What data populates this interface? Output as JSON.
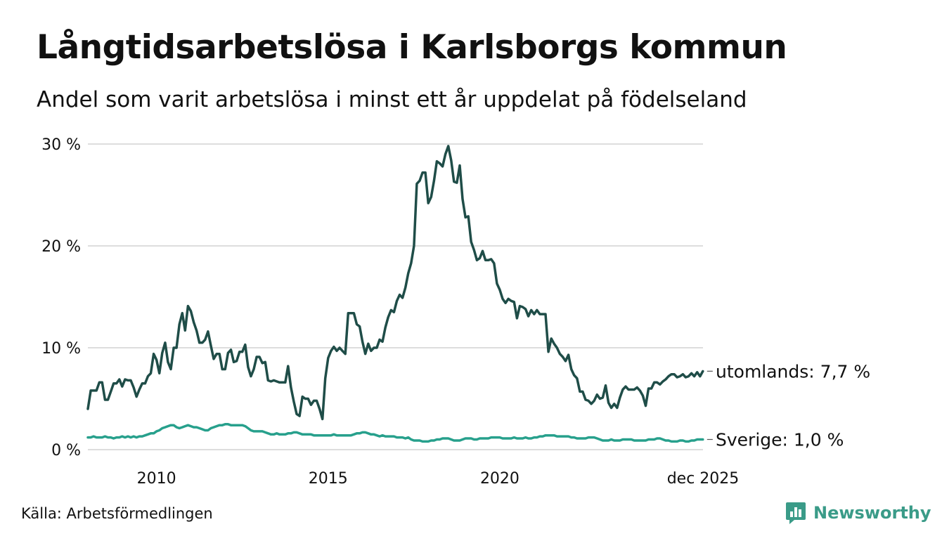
{
  "header": {
    "title": "Långtidsarbetslösa i Karlsborgs kommun",
    "subtitle": "Andel som varit arbetslösa i minst ett år uppdelat på födelseland"
  },
  "footer": {
    "source": "Källa: Arbetsförmedlingen",
    "brand": "Newsworthy",
    "brand_icon": "newsworthy-logo-icon"
  },
  "colors": {
    "utomlands": "#1f4d48",
    "sverige": "#27a08c",
    "grid": "#dddddd",
    "brand": "#3a9b88"
  },
  "chart_data": {
    "type": "line",
    "title": "Långtidsarbetslösa i Karlsborgs kommun",
    "subtitle": "Andel som varit arbetslösa i minst ett år uppdelat på födelseland",
    "xlabel": "",
    "ylabel": "",
    "x_start": 2008.0,
    "x_step_months": 1,
    "xlim": [
      2008.0,
      2025.92
    ],
    "ylim": [
      0,
      30
    ],
    "grid": true,
    "legend": "end-labels",
    "y_ticks": [
      {
        "value": 0,
        "label": "0 %"
      },
      {
        "value": 10,
        "label": "10 %"
      },
      {
        "value": 20,
        "label": "20 %"
      },
      {
        "value": 30,
        "label": "30 %"
      }
    ],
    "x_ticks": [
      {
        "value": 2010,
        "label": "2010"
      },
      {
        "value": 2015,
        "label": "2015"
      },
      {
        "value": 2020,
        "label": "2020"
      },
      {
        "value": 2025.92,
        "label": "dec 2025"
      }
    ],
    "series": [
      {
        "name": "utomlands",
        "end_label": "utomlands: 7,7 %",
        "color": "#1f4d48",
        "values": [
          4.0,
          5.8,
          5.8,
          5.8,
          6.6,
          6.6,
          4.9,
          4.9,
          5.7,
          6.5,
          6.5,
          6.9,
          6.2,
          6.9,
          6.8,
          6.8,
          6.1,
          5.2,
          5.9,
          6.5,
          6.5,
          7.2,
          7.5,
          9.4,
          8.8,
          7.5,
          9.5,
          10.5,
          8.6,
          7.9,
          10.0,
          10.0,
          12.3,
          13.4,
          11.7,
          14.1,
          13.6,
          12.5,
          11.7,
          10.5,
          10.5,
          10.8,
          11.6,
          10.2,
          8.9,
          9.4,
          9.4,
          7.9,
          7.9,
          9.5,
          9.8,
          8.6,
          8.7,
          9.6,
          9.6,
          10.3,
          8.1,
          7.2,
          7.9,
          9.1,
          9.1,
          8.5,
          8.6,
          6.8,
          6.7,
          6.8,
          6.7,
          6.6,
          6.6,
          6.6,
          8.2,
          6.1,
          4.7,
          3.5,
          3.3,
          5.2,
          5.0,
          5.0,
          4.4,
          4.8,
          4.8,
          4.0,
          3.0,
          7.0,
          9.0,
          9.7,
          10.1,
          9.7,
          10.0,
          9.7,
          9.4,
          13.4,
          13.4,
          13.4,
          12.3,
          12.1,
          10.6,
          9.4,
          10.4,
          9.7,
          10.0,
          10.0,
          10.8,
          10.6,
          12.0,
          13.0,
          13.7,
          13.5,
          14.6,
          15.2,
          14.9,
          15.9,
          17.3,
          18.3,
          20.0,
          26.1,
          26.4,
          27.2,
          27.2,
          24.2,
          24.8,
          26.4,
          28.3,
          28.1,
          27.8,
          29.0,
          29.8,
          28.4,
          26.3,
          26.2,
          27.9,
          24.6,
          22.8,
          22.9,
          20.4,
          19.6,
          18.6,
          18.8,
          19.5,
          18.6,
          18.6,
          18.7,
          18.3,
          16.3,
          15.7,
          14.8,
          14.4,
          14.8,
          14.6,
          14.5,
          12.9,
          14.1,
          14.0,
          13.8,
          13.1,
          13.7,
          13.3,
          13.7,
          13.3,
          13.3,
          13.3,
          9.6,
          10.9,
          10.4,
          10.0,
          9.4,
          9.1,
          8.7,
          9.3,
          7.9,
          7.3,
          7.0,
          5.7,
          5.7,
          4.9,
          4.8,
          4.5,
          4.8,
          5.4,
          5.0,
          5.1,
          6.3,
          4.6,
          4.1,
          4.5,
          4.1,
          5.1,
          5.9,
          6.2,
          5.9,
          5.9,
          5.9,
          6.1,
          5.8,
          5.3,
          4.3,
          6.0,
          6.0,
          6.6,
          6.6,
          6.4,
          6.7,
          6.9,
          7.2,
          7.4,
          7.4,
          7.1,
          7.2,
          7.4,
          7.1,
          7.2,
          7.5,
          7.2,
          7.6,
          7.2,
          7.7
        ]
      },
      {
        "name": "Sverige",
        "end_label": "Sverige: 1,0 %",
        "color": "#27a08c",
        "values": [
          1.2,
          1.2,
          1.3,
          1.2,
          1.2,
          1.2,
          1.3,
          1.2,
          1.2,
          1.1,
          1.2,
          1.2,
          1.3,
          1.2,
          1.3,
          1.2,
          1.3,
          1.2,
          1.3,
          1.3,
          1.4,
          1.5,
          1.6,
          1.6,
          1.8,
          1.9,
          2.1,
          2.2,
          2.3,
          2.4,
          2.4,
          2.2,
          2.1,
          2.2,
          2.3,
          2.4,
          2.3,
          2.2,
          2.2,
          2.1,
          2.0,
          1.9,
          1.9,
          2.1,
          2.2,
          2.3,
          2.4,
          2.4,
          2.5,
          2.5,
          2.4,
          2.4,
          2.4,
          2.4,
          2.4,
          2.3,
          2.1,
          1.9,
          1.8,
          1.8,
          1.8,
          1.8,
          1.7,
          1.6,
          1.5,
          1.5,
          1.6,
          1.5,
          1.5,
          1.5,
          1.6,
          1.6,
          1.7,
          1.7,
          1.6,
          1.5,
          1.5,
          1.5,
          1.5,
          1.4,
          1.4,
          1.4,
          1.4,
          1.4,
          1.4,
          1.4,
          1.5,
          1.4,
          1.4,
          1.4,
          1.4,
          1.4,
          1.4,
          1.5,
          1.6,
          1.6,
          1.7,
          1.7,
          1.6,
          1.5,
          1.5,
          1.4,
          1.3,
          1.4,
          1.3,
          1.3,
          1.3,
          1.3,
          1.2,
          1.2,
          1.2,
          1.1,
          1.2,
          1.0,
          0.9,
          0.9,
          0.9,
          0.8,
          0.8,
          0.8,
          0.9,
          0.9,
          1.0,
          1.0,
          1.1,
          1.1,
          1.1,
          1.0,
          0.9,
          0.9,
          0.9,
          1.0,
          1.1,
          1.1,
          1.1,
          1.0,
          1.0,
          1.1,
          1.1,
          1.1,
          1.1,
          1.2,
          1.2,
          1.2,
          1.2,
          1.1,
          1.1,
          1.1,
          1.1,
          1.2,
          1.1,
          1.1,
          1.1,
          1.2,
          1.1,
          1.1,
          1.2,
          1.2,
          1.3,
          1.3,
          1.4,
          1.4,
          1.4,
          1.4,
          1.3,
          1.3,
          1.3,
          1.3,
          1.3,
          1.2,
          1.2,
          1.1,
          1.1,
          1.1,
          1.1,
          1.2,
          1.2,
          1.2,
          1.1,
          1.0,
          0.9,
          0.9,
          0.9,
          1.0,
          0.9,
          0.9,
          0.9,
          1.0,
          1.0,
          1.0,
          1.0,
          0.9,
          0.9,
          0.9,
          0.9,
          0.9,
          1.0,
          1.0,
          1.0,
          1.1,
          1.1,
          1.0,
          0.9,
          0.9,
          0.8,
          0.8,
          0.8,
          0.9,
          0.9,
          0.8,
          0.8,
          0.9,
          0.9,
          1.0,
          1.0,
          1.0
        ]
      }
    ]
  }
}
